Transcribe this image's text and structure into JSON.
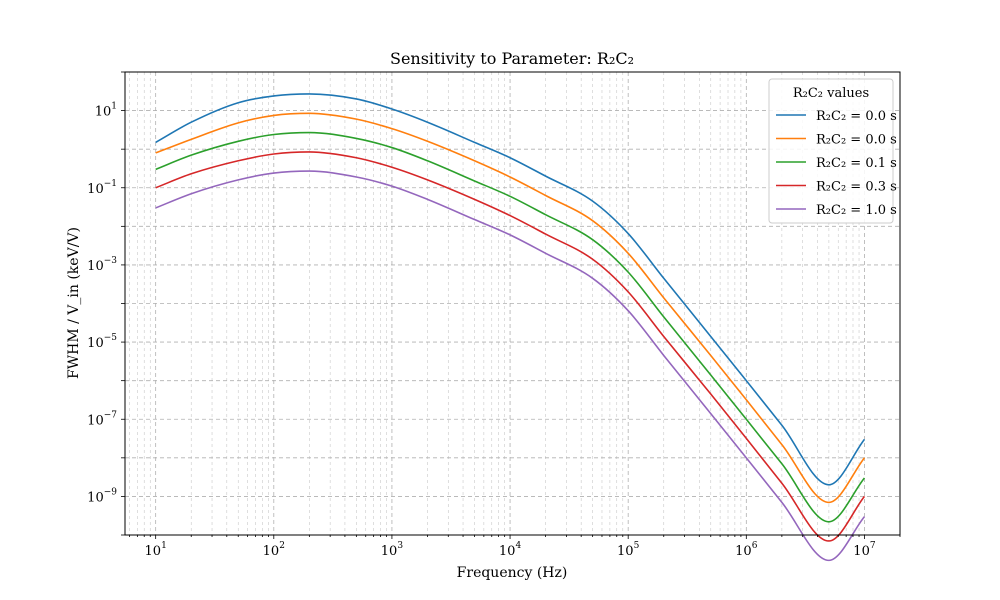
{
  "chart_data": {
    "type": "line",
    "title": "Sensitivity to Parameter: R₂C₂",
    "xlabel": "Frequency (Hz)",
    "ylabel": "FWHM / V_in (keV/V)",
    "xscale": "log",
    "yscale": "log",
    "xlim": [
      5.5,
      20000000
    ],
    "ylim": [
      1e-10,
      100
    ],
    "x_ticks": [
      {
        "base": "10",
        "exp": "1",
        "value": 10
      },
      {
        "base": "10",
        "exp": "2",
        "value": 100
      },
      {
        "base": "10",
        "exp": "3",
        "value": 1000
      },
      {
        "base": "10",
        "exp": "4",
        "value": 10000
      },
      {
        "base": "10",
        "exp": "5",
        "value": 100000
      },
      {
        "base": "10",
        "exp": "6",
        "value": 1000000
      },
      {
        "base": "10",
        "exp": "7",
        "value": 10000000
      }
    ],
    "y_ticks": [
      {
        "base": "10",
        "exp": "1",
        "value": 10
      },
      {
        "base": "10",
        "exp": "−1",
        "value": 0.1
      },
      {
        "base": "10",
        "exp": "−3",
        "value": 0.001
      },
      {
        "base": "10",
        "exp": "−5",
        "value": 1e-05
      },
      {
        "base": "10",
        "exp": "−7",
        "value": 1e-07
      },
      {
        "base": "10",
        "exp": "−9",
        "value": 1e-09
      }
    ],
    "grid": true,
    "legend": {
      "title": "R₂C₂ values",
      "placement": "top-right"
    },
    "x": [
      10,
      20,
      50,
      100,
      200,
      500,
      1000,
      2000,
      5000,
      10000,
      20000,
      50000,
      100000,
      200000,
      500000,
      1000000,
      2000000,
      5000000,
      10000000
    ],
    "series": [
      {
        "name": "R₂C₂ = 0.0 s",
        "color": "#1f77b4",
        "values": [
          1.5,
          5.0,
          16,
          24,
          27,
          20,
          11,
          5.0,
          1.5,
          0.6,
          0.2,
          0.045,
          0.0065,
          0.00045,
          1.4e-05,
          1e-06,
          7e-08,
          2e-09,
          3e-08
        ]
      },
      {
        "name": "R₂C₂ = 0.0 s",
        "color": "#ff7f0e",
        "values": [
          0.8,
          1.8,
          4.8,
          7.5,
          8.5,
          6.0,
          3.4,
          1.6,
          0.5,
          0.19,
          0.063,
          0.014,
          0.002,
          0.00014,
          4.5e-06,
          3.2e-07,
          2.2e-08,
          7e-10,
          1e-08
        ]
      },
      {
        "name": "R₂C₂ = 0.1 s",
        "color": "#2ca02c",
        "values": [
          0.3,
          0.7,
          1.6,
          2.4,
          2.7,
          1.9,
          1.1,
          0.5,
          0.15,
          0.06,
          0.02,
          0.0045,
          0.00065,
          4.5e-05,
          1.4e-06,
          1e-07,
          7e-09,
          2.2e-10,
          3e-09
        ]
      },
      {
        "name": "R₂C₂ = 0.3 s",
        "color": "#d62728",
        "values": [
          0.1,
          0.23,
          0.5,
          0.75,
          0.85,
          0.6,
          0.34,
          0.16,
          0.05,
          0.019,
          0.0063,
          0.0014,
          0.0002,
          1.4e-05,
          4.5e-07,
          3.2e-08,
          2.2e-09,
          7e-11,
          1e-09
        ]
      },
      {
        "name": "R₂C₂ = 1.0 s",
        "color": "#9467bd",
        "values": [
          0.03,
          0.07,
          0.16,
          0.24,
          0.27,
          0.19,
          0.11,
          0.05,
          0.015,
          0.006,
          0.002,
          0.00045,
          6.5e-05,
          4.5e-06,
          1.4e-07,
          1e-08,
          7e-10,
          2.2e-11,
          3e-10
        ]
      }
    ]
  }
}
